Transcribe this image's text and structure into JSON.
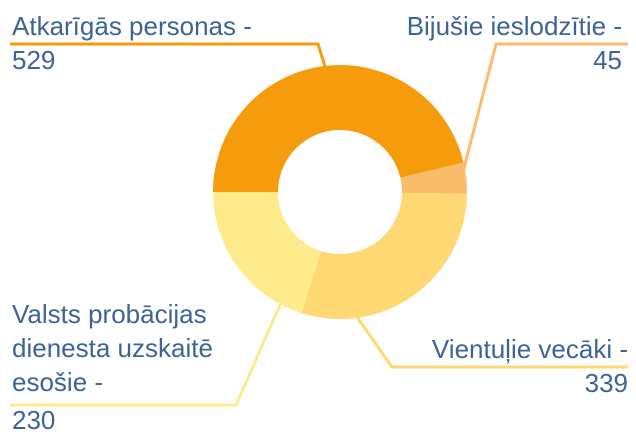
{
  "chart_data": {
    "type": "donut",
    "categories": [
      "Atkarīgās personas -",
      "Bijušie ieslodzītie -",
      "Vientuļie vecāki -",
      "Valsts probācijas dienesta uzskaitē esošie -"
    ],
    "values": [
      529,
      45,
      339,
      230
    ],
    "colors": [
      "#f59b0c",
      "#f9bd6c",
      "#fdd873",
      "#fdeb8c"
    ]
  }
}
